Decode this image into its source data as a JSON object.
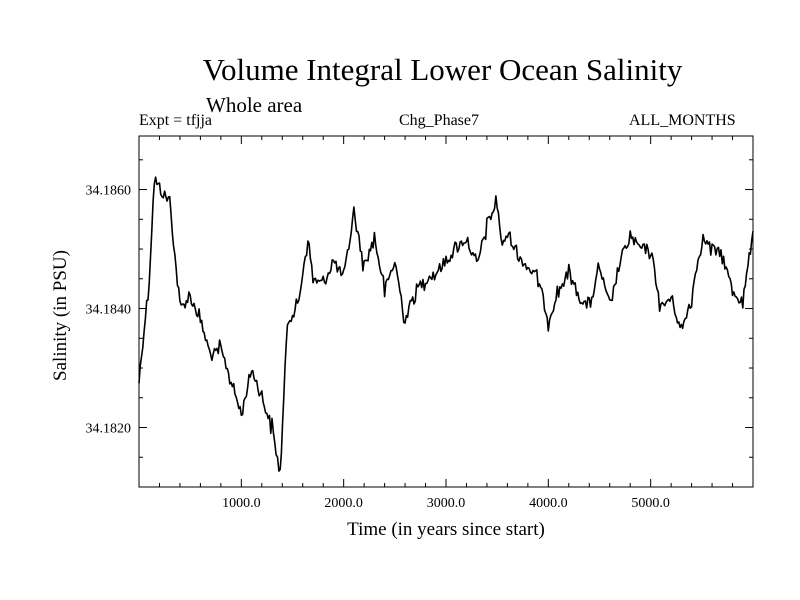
{
  "chart_data": {
    "type": "line",
    "title": "Volume Integral Lower Ocean Salinity",
    "subtitle": "Whole area",
    "header_left": "Expt = tfjja",
    "header_center": "Chg_Phase7",
    "header_right": "ALL_MONTHS",
    "xlabel": "Time (in years since start)",
    "ylabel": "Salinity (in PSU)",
    "xlim": [
      0,
      6000
    ],
    "ylim": [
      34.181,
      34.1869
    ],
    "x_ticks": [
      1000,
      2000,
      3000,
      4000,
      5000
    ],
    "x_tick_labels": [
      "1000.0",
      "2000.0",
      "3000.0",
      "4000.0",
      "5000.0"
    ],
    "y_ticks": [
      34.182,
      34.184,
      34.186
    ],
    "y_tick_labels": [
      "34.1820",
      "34.1840",
      "34.1860"
    ],
    "grid": false,
    "series": [
      {
        "color": "#000000",
        "x": [
          0,
          100,
          150,
          200,
          300,
          400,
          500,
          600,
          700,
          800,
          900,
          1000,
          1100,
          1200,
          1300,
          1380,
          1450,
          1550,
          1650,
          1700,
          1800,
          1900,
          2000,
          2100,
          2200,
          2300,
          2400,
          2500,
          2600,
          2700,
          2800,
          2900,
          3000,
          3100,
          3200,
          3300,
          3400,
          3500,
          3550,
          3600,
          3700,
          3800,
          3900,
          4000,
          4100,
          4200,
          4300,
          4400,
          4500,
          4600,
          4700,
          4800,
          4900,
          5000,
          5100,
          5200,
          5300,
          5400,
          5500,
          5600,
          5700,
          5800,
          5900,
          6000
        ],
        "y": [
          34.1828,
          34.1845,
          34.1862,
          34.186,
          34.1858,
          34.184,
          34.1842,
          34.1838,
          34.1832,
          34.1833,
          34.1828,
          34.1822,
          34.183,
          34.1825,
          34.182,
          34.1812,
          34.1838,
          34.184,
          34.1852,
          34.1845,
          34.1844,
          34.1848,
          34.1845,
          34.1856,
          34.1847,
          34.1852,
          34.1843,
          34.1848,
          34.1838,
          34.1843,
          34.1845,
          34.1846,
          34.1848,
          34.185,
          34.1852,
          34.1847,
          34.1854,
          34.1858,
          34.185,
          34.1853,
          34.1849,
          34.1847,
          34.1845,
          34.1838,
          34.1843,
          34.1846,
          34.1842,
          34.184,
          34.1847,
          34.184,
          34.1848,
          34.1852,
          34.185,
          34.185,
          34.184,
          34.1842,
          34.1836,
          34.1842,
          34.1852,
          34.185,
          34.1849,
          34.1843,
          34.1841,
          34.1853
        ]
      }
    ]
  }
}
